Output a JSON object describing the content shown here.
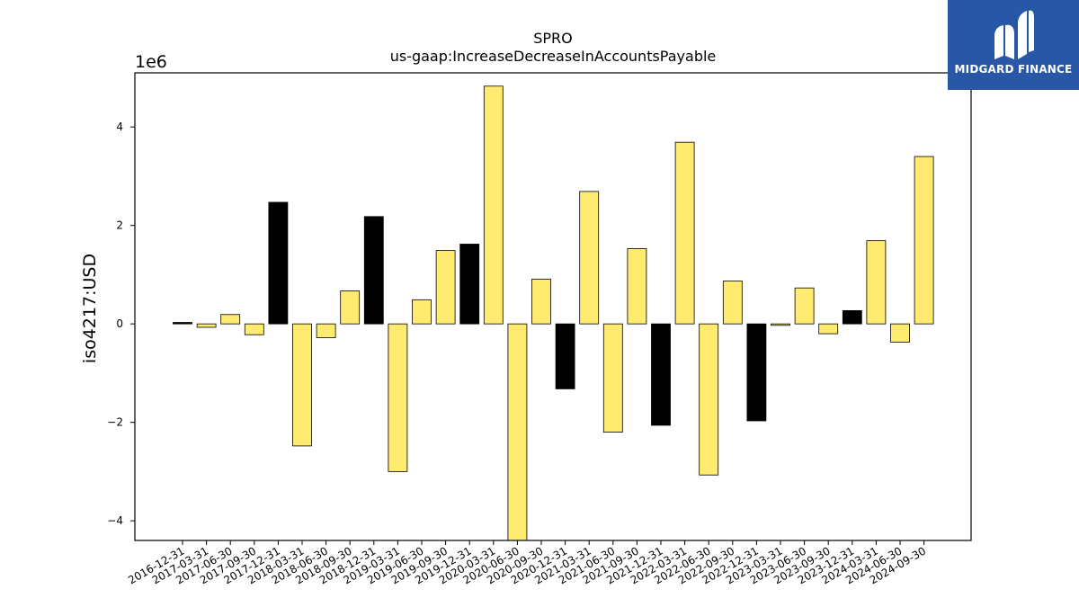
{
  "brand": {
    "name": "MIDGARD FINANCE",
    "bg_color": "#2957a8",
    "icon": "midgard-logo-icon"
  },
  "chart_data": {
    "type": "bar",
    "title": "SPRO",
    "subtitle": "us-gaap:IncreaseDecreaseInAccountsPayable",
    "xlabel": "",
    "ylabel": "iso4217:USD",
    "y_scale_label": "1e6",
    "y_scale": 1000000,
    "ylim": [
      -4.4,
      5.1
    ],
    "yticks": [
      -4,
      -2,
      0,
      2,
      4
    ],
    "ytick_labels": [
      "−4",
      "−2",
      "0",
      "2",
      "4"
    ],
    "grid": false,
    "categories": [
      "2016-12-31",
      "2017-03-31",
      "2017-06-30",
      "2017-09-30",
      "2017-12-31",
      "2018-03-31",
      "2018-06-30",
      "2018-09-30",
      "2018-12-31",
      "2019-03-31",
      "2019-06-30",
      "2019-09-30",
      "2019-12-31",
      "2020-03-31",
      "2020-06-30",
      "2020-09-30",
      "2020-12-31",
      "2021-03-31",
      "2021-06-30",
      "2021-09-30",
      "2021-12-31",
      "2022-03-31",
      "2022-06-30",
      "2022-09-30",
      "2022-12-31",
      "2023-03-31",
      "2023-06-30",
      "2023-09-30",
      "2023-12-31",
      "2024-03-31",
      "2024-06-30",
      "2024-09-30"
    ],
    "values": [
      0.03,
      -0.07,
      0.19,
      -0.22,
      2.47,
      -2.48,
      -0.28,
      0.67,
      2.18,
      -3.0,
      0.49,
      1.49,
      1.62,
      4.83,
      -4.4,
      0.91,
      -1.32,
      2.69,
      -2.2,
      1.53,
      -2.06,
      3.69,
      -3.07,
      0.87,
      -1.97,
      -0.03,
      0.73,
      -0.2,
      0.27,
      1.69,
      -0.37,
      3.4
    ],
    "bar_colors": [
      "#000000",
      "#ffeb70",
      "#ffeb70",
      "#ffeb70",
      "#000000",
      "#ffeb70",
      "#ffeb70",
      "#ffeb70",
      "#000000",
      "#ffeb70",
      "#ffeb70",
      "#ffeb70",
      "#000000",
      "#ffeb70",
      "#ffeb70",
      "#ffeb70",
      "#000000",
      "#ffeb70",
      "#ffeb70",
      "#ffeb70",
      "#000000",
      "#ffeb70",
      "#ffeb70",
      "#ffeb70",
      "#000000",
      "#ffeb70",
      "#ffeb70",
      "#ffeb70",
      "#000000",
      "#ffeb70",
      "#ffeb70",
      "#ffeb70"
    ],
    "colors": {
      "quarter": "#ffeb70",
      "year_end": "#000000",
      "edge": "#000000"
    }
  }
}
